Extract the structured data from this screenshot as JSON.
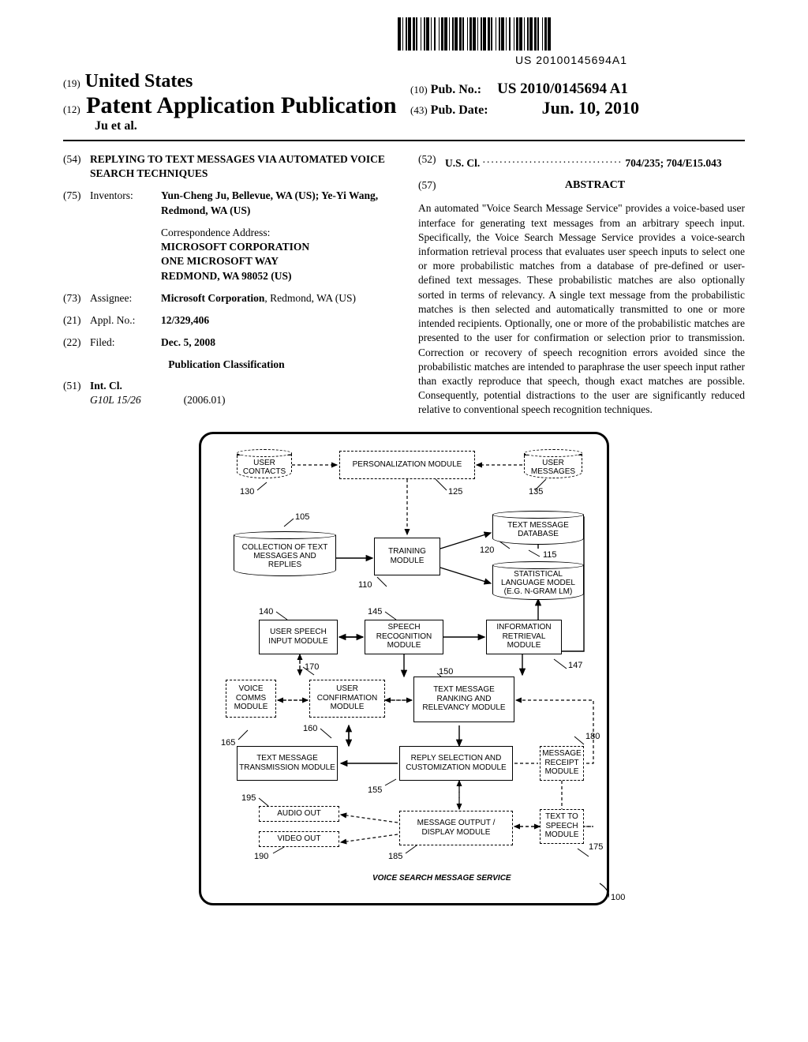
{
  "barcode_text": "US 20100145694A1",
  "header": {
    "country_prefix": "(19)",
    "country": "United States",
    "pubtype_prefix": "(12)",
    "pubtype": "Patent Application Publication",
    "authors": "Ju et al.",
    "pubno_prefix": "(10)",
    "pubno_label": "Pub. No.:",
    "pubno_value": "US 2010/0145694 A1",
    "pubdate_prefix": "(43)",
    "pubdate_label": "Pub. Date:",
    "pubdate_value": "Jun. 10, 2010"
  },
  "left_col": {
    "title_num": "(54)",
    "title": "REPLYING TO TEXT MESSAGES VIA AUTOMATED VOICE SEARCH TECHNIQUES",
    "inventors_num": "(75)",
    "inventors_label": "Inventors:",
    "inventors_body": "Yun-Cheng Ju, Bellevue, WA (US); Ye-Yi Wang, Redmond, WA (US)",
    "corr_label": "Correspondence Address:",
    "corr_lines": [
      "MICROSOFT CORPORATION",
      "ONE MICROSOFT WAY",
      "REDMOND, WA 98052 (US)"
    ],
    "assignee_num": "(73)",
    "assignee_label": "Assignee:",
    "assignee_body_bold": "Microsoft Corporation",
    "assignee_body_rest": ", Redmond, WA (US)",
    "appl_num_num": "(21)",
    "appl_num_label": "Appl. No.:",
    "appl_num_value": "12/329,406",
    "filed_num": "(22)",
    "filed_label": "Filed:",
    "filed_value": "Dec. 5, 2008",
    "pubclass_title": "Publication Classification",
    "intcl_num": "(51)",
    "intcl_label": "Int. Cl.",
    "intcl_code": "G10L 15/26",
    "intcl_year": "(2006.01)"
  },
  "right_col": {
    "uscl_num": "(52)",
    "uscl_label": "U.S. Cl.",
    "uscl_value": "704/235; 704/E15.043",
    "abstract_num": "(57)",
    "abstract_title": "ABSTRACT",
    "abstract_body": "An automated \"Voice Search Message Service\" provides a voice-based user interface for generating text messages from an arbitrary speech input. Specifically, the Voice Search Message Service provides a voice-search information retrieval process that evaluates user speech inputs to select one or more probabilistic matches from a database of pre-defined or user-defined text messages. These probabilistic matches are also optionally sorted in terms of relevancy. A single text message from the probabilistic matches is then selected and automatically transmitted to one or more intended recipients. Optionally, one or more of the probabilistic matches are presented to the user for confirmation or selection prior to transmission. Correction or recovery of speech recognition errors avoided since the probabilistic matches are intended to paraphrase the user speech input rather than exactly reproduce that speech, though exact matches are possible. Consequently, potential distractions to the user are significantly reduced relative to conventional speech recognition techniques."
  },
  "diagram": {
    "service_label": "VOICE SEARCH MESSAGE SERVICE",
    "nodes": {
      "user_contacts": {
        "label": "USER CONTACTS",
        "ref": "130"
      },
      "personalization": {
        "label": "PERSONALIZATION MODULE",
        "ref": "125"
      },
      "user_messages": {
        "label": "USER MESSAGES",
        "ref": "135"
      },
      "collection": {
        "label": "COLLECTION OF TEXT MESSAGES AND REPLIES",
        "ref": "105"
      },
      "training": {
        "label": "TRAINING MODULE",
        "ref": "110"
      },
      "txtdb": {
        "label": "TEXT MESSAGE DATABASE",
        "ref": "120"
      },
      "slm": {
        "label": "STATISTICAL LANGUAGE MODEL (E.G. N-GRAM LM)",
        "ref": "115"
      },
      "speech_input": {
        "label": "USER SPEECH INPUT MODULE",
        "ref": "140"
      },
      "speech_rec": {
        "label": "SPEECH RECOGNITION MODULE",
        "ref": "145"
      },
      "info_retr": {
        "label": "INFORMATION RETRIEVAL MODULE",
        "ref": "147"
      },
      "voice_comms": {
        "label": "VOICE COMMS MODULE",
        "ref": "170"
      },
      "user_conf": {
        "label": "USER CONFIRMATION MODULE",
        "ref": "160"
      },
      "rank": {
        "label": "TEXT MESSAGE RANKING AND RELEVANCY MODULE",
        "ref": "150"
      },
      "txtx": {
        "label": "TEXT MESSAGE TRANSMISSION MODULE",
        "ref": "165"
      },
      "reply_sel": {
        "label": "REPLY SELECTION AND CUSTOMIZATION MODULE",
        "ref": "155"
      },
      "msg_receipt": {
        "label": "MESSAGE RECEIPT MODULE",
        "ref": "180"
      },
      "audio_out": {
        "label": "AUDIO OUT",
        "ref": "195"
      },
      "video_out": {
        "label": "VIDEO OUT",
        "ref": "190"
      },
      "msg_out": {
        "label": "MESSAGE OUTPUT / DISPLAY MODULE",
        "ref": "185"
      },
      "tts": {
        "label": "TEXT TO SPEECH MODULE",
        "ref": "175"
      }
    },
    "hook_ref": "100"
  },
  "style": {
    "page_bg": "#ffffff",
    "text_color": "#000000",
    "rule_color": "#000000",
    "box_border": "#000000",
    "font_serif": "Times New Roman",
    "font_sans": "Arial",
    "title_fontsize": 30,
    "body_fontsize": 13.5
  }
}
